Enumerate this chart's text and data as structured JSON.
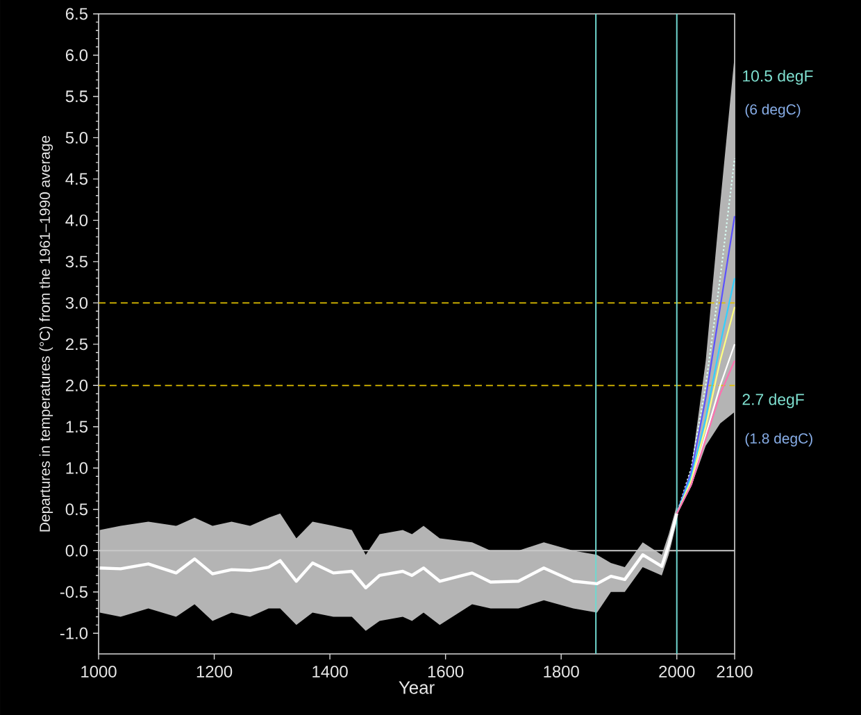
{
  "chart_data": {
    "type": "line",
    "xlabel": "Year",
    "ylabel": "Departures in temperatures (°C) from the 1961–1990 average",
    "xlim": [
      1000,
      2100
    ],
    "ylim": [
      -1.25,
      6.5
    ],
    "xticks": [
      1000,
      1200,
      1400,
      1600,
      1800,
      2000,
      2100
    ],
    "yticks": [
      {
        "value": -1.0,
        "label": "-1.0"
      },
      {
        "value": -0.5,
        "label": "-0.5"
      },
      {
        "value": 0.0,
        "label": "0.0"
      },
      {
        "value": 0.5,
        "label": "0.5"
      },
      {
        "value": 1.0,
        "label": "1.0"
      },
      {
        "value": 1.5,
        "label": "1.5"
      },
      {
        "value": 2.0,
        "label": "2.0"
      },
      {
        "value": 2.5,
        "label": "2.5"
      },
      {
        "value": 3.0,
        "label": "3.0"
      },
      {
        "value": 3.5,
        "label": "3.5"
      },
      {
        "value": 4.0,
        "label": "4.0"
      },
      {
        "value": 4.5,
        "label": "4.5"
      },
      {
        "value": 5.0,
        "label": "5.0"
      },
      {
        "value": 5.5,
        "label": "5.5"
      },
      {
        "value": 6.0,
        "label": "6.0"
      },
      {
        "value": 6.5,
        "label": "6.5"
      }
    ],
    "marker": "none",
    "series": [
      {
        "color": "#ffffff",
        "x": [
          1002,
          1038,
          1086,
          1134,
          1166,
          1197,
          1230,
          1262,
          1294,
          1314,
          1342,
          1370,
          1406,
          1438,
          1462,
          1486,
          1526,
          1542,
          1562,
          1590,
          1646,
          1678,
          1726,
          1770,
          1821,
          1862,
          1886,
          1910,
          1941,
          1974,
          1986,
          2000
        ],
        "values": [
          -0.21,
          -0.22,
          -0.16,
          -0.27,
          -0.1,
          -0.28,
          -0.23,
          -0.24,
          -0.2,
          -0.12,
          -0.37,
          -0.15,
          -0.27,
          -0.25,
          -0.45,
          -0.3,
          -0.25,
          -0.3,
          -0.21,
          -0.37,
          -0.27,
          -0.38,
          -0.37,
          -0.21,
          -0.37,
          -0.4,
          -0.31,
          -0.35,
          -0.05,
          -0.19,
          0.07,
          0.45
        ],
        "lower": [
          -0.75,
          -0.8,
          -0.7,
          -0.8,
          -0.65,
          -0.85,
          -0.75,
          -0.8,
          -0.7,
          -0.7,
          -0.9,
          -0.75,
          -0.8,
          -0.8,
          -0.97,
          -0.85,
          -0.8,
          -0.85,
          -0.75,
          -0.9,
          -0.65,
          -0.7,
          -0.7,
          -0.6,
          -0.7,
          -0.75,
          -0.5,
          -0.5,
          -0.2,
          -0.3,
          -0.05,
          0.35
        ],
        "upper": [
          0.25,
          0.3,
          0.35,
          0.3,
          0.4,
          0.3,
          0.35,
          0.3,
          0.4,
          0.45,
          0.15,
          0.35,
          0.3,
          0.25,
          -0.05,
          0.2,
          0.25,
          0.2,
          0.3,
          0.15,
          0.1,
          0.0,
          0.0,
          0.1,
          0.0,
          -0.05,
          -0.15,
          -0.2,
          0.1,
          -0.05,
          0.2,
          0.55
        ]
      },
      {
        "color": "#d8fff4",
        "line_style": "dotted",
        "x": [
          2000,
          2025,
          2050,
          2075,
          2100
        ],
        "values": [
          0.45,
          1.0,
          2.0,
          3.3,
          4.75
        ]
      },
      {
        "color": "#5a50ff",
        "x": [
          2000,
          2025,
          2050,
          2075,
          2100
        ],
        "values": [
          0.45,
          0.95,
          1.85,
          2.95,
          4.05
        ]
      },
      {
        "color": "#30d0ff",
        "x": [
          2000,
          2025,
          2050,
          2075,
          2100
        ],
        "values": [
          0.45,
          0.9,
          1.6,
          2.5,
          3.3
        ]
      },
      {
        "color": "#ffff80",
        "x": [
          2000,
          2025,
          2050,
          2075,
          2100
        ],
        "values": [
          0.45,
          0.85,
          1.5,
          2.3,
          2.95
        ]
      },
      {
        "color": "#ffffff",
        "x": [
          2000,
          2025,
          2050,
          2075,
          2100
        ],
        "values": [
          0.45,
          0.8,
          1.4,
          2.0,
          2.5
        ],
        "lower": [
          0.45,
          0.78,
          1.27,
          1.54,
          1.68
        ],
        "upper": [
          0.45,
          1.0,
          2.3,
          4.2,
          6.0
        ]
      },
      {
        "color": "#ff70b0",
        "x": [
          2000,
          2025,
          2050,
          2075,
          2100
        ],
        "values": [
          0.45,
          0.8,
          1.35,
          1.9,
          2.3
        ]
      }
    ],
    "ref_lines": [
      {
        "axis": "y",
        "value": 0,
        "color": "#c8c8c8",
        "line_style": "solid"
      },
      {
        "axis": "y",
        "value": 2.0,
        "color": "#e0c000",
        "line_style": "dashed"
      },
      {
        "axis": "y",
        "value": 3.0,
        "color": "#e0c000",
        "line_style": "dashed"
      },
      {
        "axis": "x",
        "value": 1860,
        "color": "#70d8d0",
        "line_style": "solid"
      },
      {
        "axis": "x",
        "value": 2000,
        "color": "#70d8d0",
        "line_style": "solid"
      }
    ],
    "annotations": [
      "10.5 degF",
      "(6 degC)",
      "2.7 degF",
      "(1.8 degC)"
    ]
  }
}
